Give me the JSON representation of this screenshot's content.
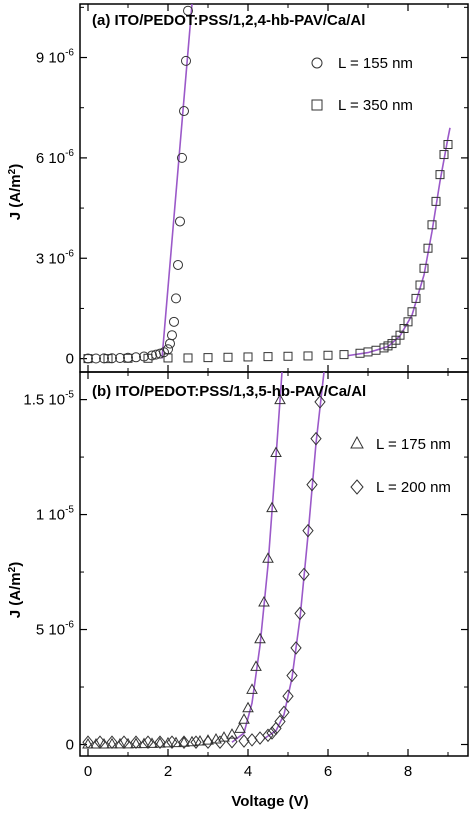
{
  "chart_data": [
    {
      "type": "scatter",
      "title": "(a) ITO/PEDOT:PSS/1,2,4-hb-PAV/Ca/Al",
      "xlabel": "Voltage (V)",
      "ylabel": "J (A/m²)",
      "ylabel_main": "J (A/m",
      "ylabel_sup": "2",
      "ylabel_end": ")",
      "xlim": [
        -0.2,
        9.5
      ],
      "ylim": [
        -4e-07,
        1.06e-05
      ],
      "y_ticks": [
        {
          "value": 0,
          "base": "0",
          "exp": ""
        },
        {
          "value": 3e-06,
          "base": "3 10",
          "exp": "-6"
        },
        {
          "value": 6e-06,
          "base": "6 10",
          "exp": "-6"
        },
        {
          "value": 9e-06,
          "base": "9 10",
          "exp": "-6"
        }
      ],
      "x_ticks": [
        0,
        2,
        4,
        6,
        8
      ],
      "fit_color": "#9b59c9",
      "series": [
        {
          "name": "L = 155 nm",
          "marker": "circle",
          "x": [
            0.0,
            0.2,
            0.4,
            0.6,
            0.8,
            1.0,
            1.2,
            1.4,
            1.6,
            1.7,
            1.8,
            1.9,
            2.0,
            2.05,
            2.1,
            2.15,
            2.2,
            2.25,
            2.3,
            2.35,
            2.4,
            2.45,
            2.5
          ],
          "y": [
            2e-09,
            4e-09,
            7e-09,
            1.1e-08,
            1.7e-08,
            2.6e-08,
            4e-08,
            6.2e-08,
            9.5e-08,
            1.2e-07,
            1.5e-07,
            1.9e-07,
            2.8e-07,
            4.5e-07,
            7e-07,
            1.1e-06,
            1.8e-06,
            2.8e-06,
            4.1e-06,
            6e-06,
            7.4e-06,
            8.9e-06,
            1.04e-05
          ],
          "fit_x": [
            1.85,
            2.6
          ],
          "fit_y": [
            0,
            1.06e-05
          ]
        },
        {
          "name": "L = 350 nm",
          "marker": "square",
          "x": [
            0.0,
            0.5,
            1.0,
            1.5,
            2.0,
            2.5,
            3.0,
            3.5,
            4.0,
            4.5,
            5.0,
            5.5,
            6.0,
            6.4,
            6.8,
            7.0,
            7.2,
            7.4,
            7.5,
            7.6,
            7.7,
            7.8,
            7.9,
            8.0,
            8.1,
            8.2,
            8.3,
            8.4,
            8.5,
            8.6,
            8.7,
            8.8,
            8.9,
            9.0
          ],
          "y": [
            0.0,
            0.0,
            1e-08,
            1e-08,
            2e-08,
            2e-08,
            3e-08,
            4e-08,
            5e-08,
            6e-08,
            7e-08,
            8e-08,
            1e-07,
            1.2e-07,
            1.6e-07,
            2e-07,
            2.5e-07,
            3.2e-07,
            3.8e-07,
            4.5e-07,
            5.5e-07,
            7e-07,
            9e-07,
            1.1e-06,
            1.4e-06,
            1.8e-06,
            2.2e-06,
            2.7e-06,
            3.3e-06,
            4e-06,
            4.7e-06,
            5.5e-06,
            6.1e-06,
            6.4e-06
          ],
          "fit_x": [
            6.5,
            7.0,
            7.5,
            7.8,
            8.1,
            8.4,
            8.6,
            8.8,
            9.0,
            9.05
          ],
          "fit_y": [
            9e-08,
            1.8e-07,
            3.6e-07,
            6.8e-07,
            1.3e-06,
            2.5e-06,
            3.8e-06,
            5.3e-06,
            6.6e-06,
            6.9e-06
          ]
        }
      ]
    },
    {
      "type": "scatter",
      "title": "(b) ITO/PEDOT:PSS/1,3,5-hb-PAV/Ca/Al",
      "xlabel": "Voltage (V)",
      "ylabel": "J (A/m²)",
      "ylabel_main": "J (A/m",
      "ylabel_sup": "2",
      "ylabel_end": ")",
      "xlim": [
        -0.2,
        9.5
      ],
      "ylim": [
        -5e-07,
        1.62e-05
      ],
      "y_ticks": [
        {
          "value": 0,
          "base": "0",
          "exp": ""
        },
        {
          "value": 5e-06,
          "base": "5 10",
          "exp": "-6"
        },
        {
          "value": 1e-05,
          "base": "1 10",
          "exp": "-5"
        },
        {
          "value": 1.5e-05,
          "base": "1.5 10",
          "exp": "-5"
        }
      ],
      "x_ticks": [
        0,
        2,
        4,
        6,
        8
      ],
      "xtick_labels": [
        "0",
        "2",
        "4",
        "6",
        "8"
      ],
      "fit_color": "#9b59c9",
      "series": [
        {
          "name": "L = 175 nm",
          "marker": "triangle",
          "x": [
            0.0,
            0.2,
            0.4,
            0.6,
            0.8,
            1.0,
            1.2,
            1.4,
            1.6,
            1.8,
            2.0,
            2.2,
            2.4,
            2.6,
            2.8,
            3.0,
            3.2,
            3.4,
            3.6,
            3.8,
            3.9,
            4.0,
            4.1,
            4.2,
            4.3,
            4.4,
            4.5,
            4.6,
            4.7,
            4.8
          ],
          "y": [
            2e-08,
            2e-08,
            2e-08,
            3e-08,
            3e-08,
            3e-08,
            4e-08,
            4e-08,
            5e-08,
            6e-08,
            7e-08,
            8e-08,
            1e-07,
            1.2e-07,
            1.5e-07,
            1.9e-07,
            2.4e-07,
            3.2e-07,
            4.5e-07,
            7e-07,
            1.1e-06,
            1.6e-06,
            2.4e-06,
            3.4e-06,
            4.6e-06,
            6.2e-06,
            8.1e-06,
            1.03e-05,
            1.27e-05,
            1.5e-05
          ],
          "fit_x": [
            3.6,
            3.9,
            4.1,
            4.3,
            4.5,
            4.7,
            4.85
          ],
          "fit_y": [
            1e-07,
            5e-07,
            1.8e-06,
            4.3e-06,
            7.8e-06,
            1.25e-05,
            1.62e-05
          ]
        },
        {
          "name": "L = 200 nm",
          "marker": "diamond",
          "x": [
            0.0,
            0.3,
            0.6,
            0.9,
            1.2,
            1.5,
            1.8,
            2.1,
            2.4,
            2.7,
            3.0,
            3.3,
            3.6,
            3.9,
            4.1,
            4.3,
            4.5,
            4.6,
            4.7,
            4.8,
            4.9,
            5.0,
            5.1,
            5.2,
            5.3,
            5.4,
            5.5,
            5.6,
            5.7,
            5.8
          ],
          "y": [
            1e-07,
            1e-07,
            1e-07,
            1e-07,
            1e-07,
            1e-07,
            1e-07,
            1e-07,
            1e-07,
            1e-07,
            1e-07,
            1e-07,
            1.2e-07,
            1.5e-07,
            2e-07,
            2.8e-07,
            4e-07,
            5e-07,
            7e-07,
            1e-06,
            1.4e-06,
            2.1e-06,
            3e-06,
            4.2e-06,
            5.7e-06,
            7.4e-06,
            9.3e-06,
            1.13e-05,
            1.33e-05,
            1.49e-05
          ],
          "fit_x": [
            4.4,
            4.7,
            4.9,
            5.1,
            5.3,
            5.5,
            5.7,
            5.9
          ],
          "fit_y": [
            2.5e-07,
            6e-07,
            1.3e-06,
            2.9e-06,
            5.5e-06,
            9.1e-06,
            1.31e-05,
            1.62e-05
          ]
        }
      ]
    }
  ]
}
